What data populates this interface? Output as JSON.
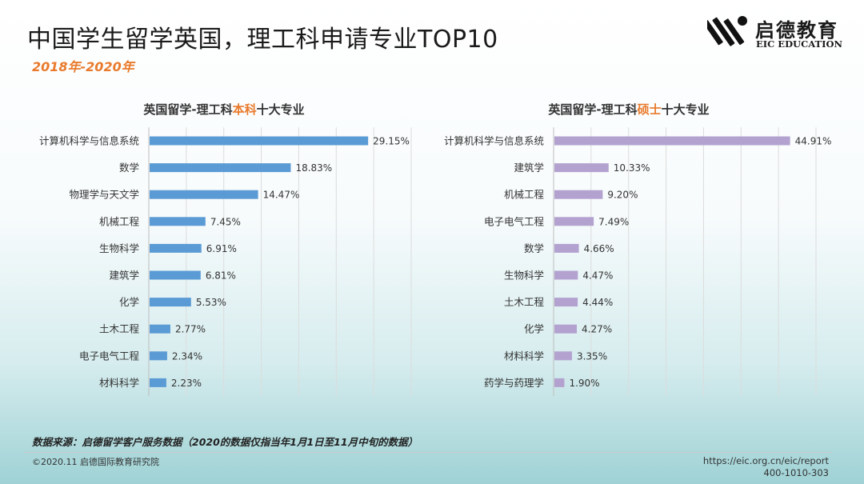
{
  "header": {
    "title": "中国学生留学英国，理工科申请专业TOP10",
    "subtitle": "2018年-2020年"
  },
  "logo": {
    "cn": "启德教育",
    "en": "EIC EDUCATION"
  },
  "colors": {
    "left_bar": "#5b9bd5",
    "right_bar": "#b3a2d0",
    "accent": "#e97a2b"
  },
  "chart_data": [
    {
      "type": "bar",
      "orientation": "horizontal",
      "title_parts": [
        "英国留学-理工科",
        "本科",
        "十大专业"
      ],
      "categories": [
        "计算机科学与信息系统",
        "数学",
        "物理学与天文学",
        "机械工程",
        "生物科学",
        "建筑学",
        "化学",
        "土木工程",
        "电子电气工程",
        "材料科学"
      ],
      "values": [
        29.15,
        18.83,
        14.47,
        7.45,
        6.91,
        6.81,
        5.53,
        2.77,
        2.34,
        2.23
      ],
      "value_labels": [
        "29.15%",
        "18.83%",
        "14.47%",
        "7.45%",
        "6.91%",
        "6.81%",
        "5.53%",
        "2.77%",
        "2.34%",
        "2.23%"
      ],
      "xlim": [
        0,
        35
      ],
      "grid": true,
      "unit": "%"
    },
    {
      "type": "bar",
      "orientation": "horizontal",
      "title_parts": [
        "英国留学-理工科",
        "硕士",
        "十大专业"
      ],
      "categories": [
        "计算机科学与信息系统",
        "建筑学",
        "机械工程",
        "电子电气工程",
        "数学",
        "生物科学",
        "土木工程",
        "化学",
        "材料科学",
        "药学与药理学"
      ],
      "values": [
        44.91,
        10.33,
        9.2,
        7.49,
        4.66,
        4.47,
        4.44,
        4.27,
        3.35,
        1.9
      ],
      "value_labels": [
        "44.91%",
        "10.33%",
        "9.20%",
        "7.49%",
        "4.66%",
        "4.47%",
        "4.44%",
        "4.27%",
        "3.35%",
        "1.90%"
      ],
      "xlim": [
        0,
        50
      ],
      "grid": true,
      "unit": "%"
    }
  ],
  "source": "数据来源：启德留学客户服务数据（2020的数据仅指当年1月1日至11月中旬的数据）",
  "footer": {
    "copyright": "©2020.11 启德国际教育研究院",
    "url": "https://eic.org.cn/eic/report",
    "phone": "400-1010-303"
  }
}
